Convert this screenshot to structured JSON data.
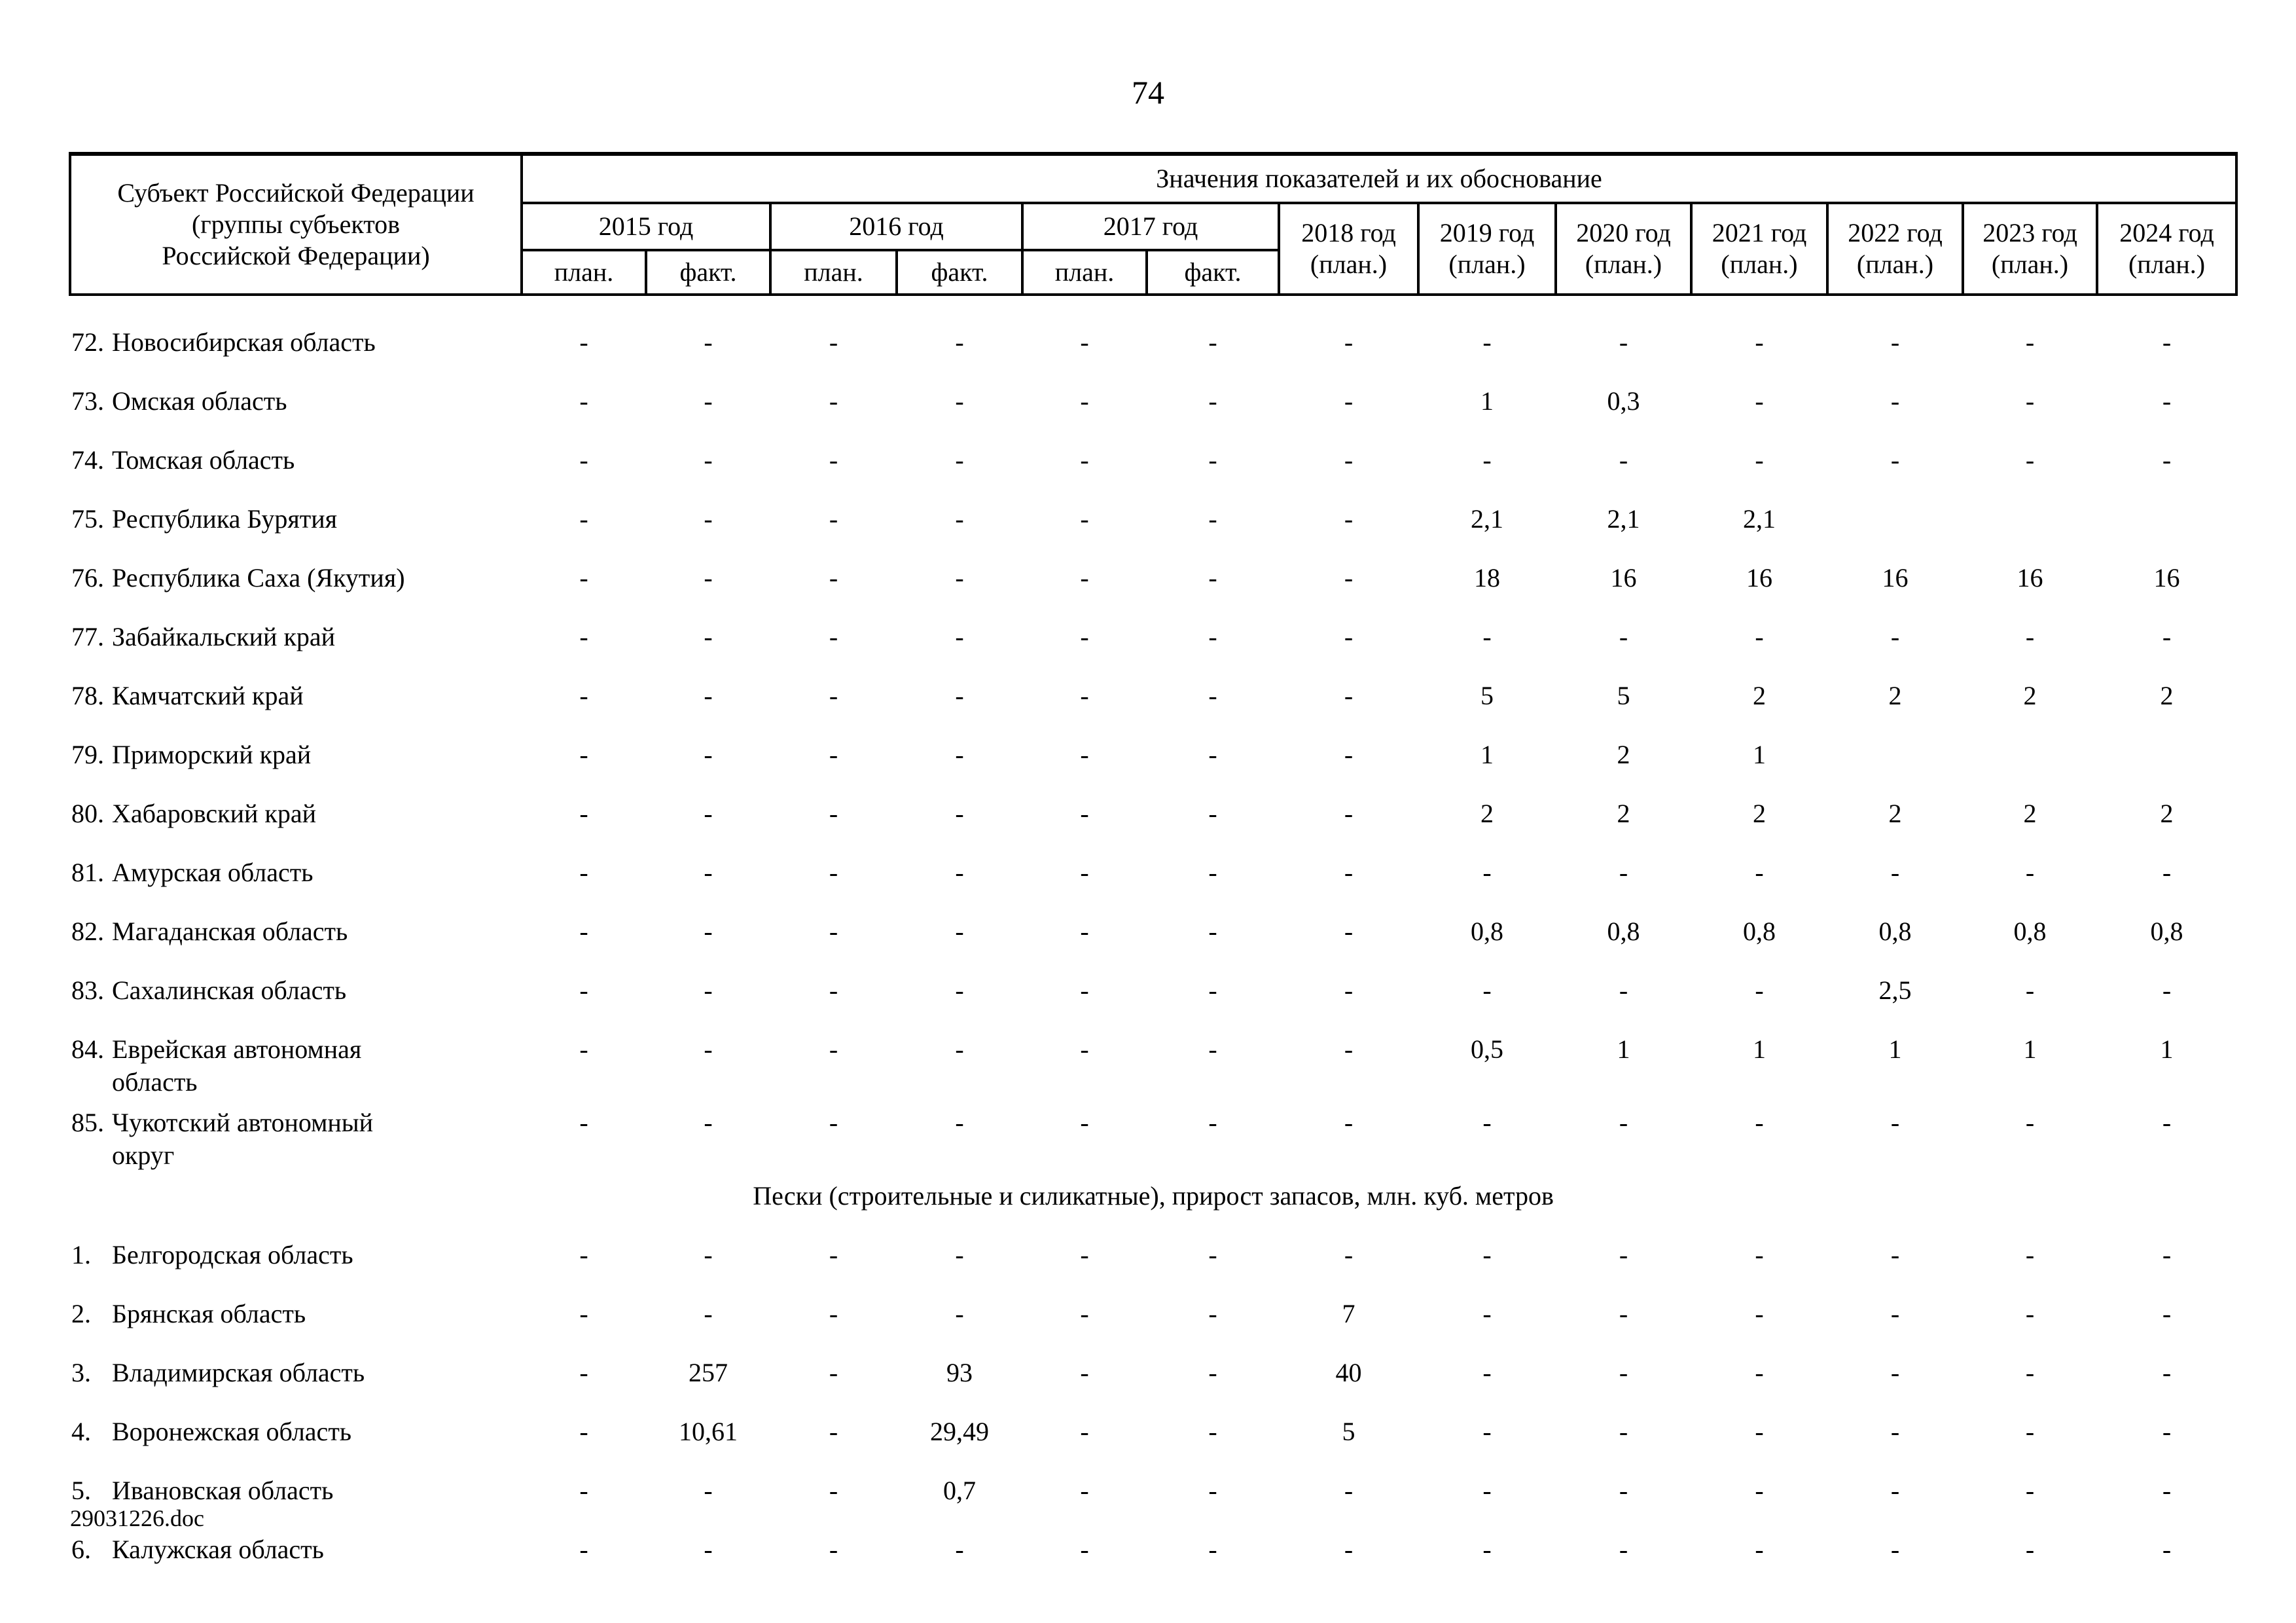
{
  "page": {
    "number": "74",
    "footer": "29031226.doc"
  },
  "table": {
    "subject_header": "Субъект Российской Федерации\n(группы субъектов\nРоссийской Федерации)",
    "values_header": "Значения показателей и их обоснование",
    "year_groups": [
      {
        "label": "2015 год"
      },
      {
        "label": "2016 год"
      },
      {
        "label": "2017 год"
      }
    ],
    "subcols": [
      "план.",
      "факт.",
      "план.",
      "факт.",
      "план.",
      "факт."
    ],
    "single_years": [
      "2018 год\n(план.)",
      "2019 год\n(план.)",
      "2020 год\n(план.)",
      "2021 год\n(план.)",
      "2022 год\n(план.)",
      "2023 год\n(план.)",
      "2024 год\n(план.)"
    ],
    "rows": [
      {
        "type": "row",
        "num": "72.",
        "name": "Новосибирская область",
        "values": [
          "-",
          "-",
          "-",
          "-",
          "-",
          "-",
          "-",
          "-",
          "-",
          "-",
          "-",
          "-",
          "-"
        ]
      },
      {
        "type": "row",
        "num": "73.",
        "name": "Омская область",
        "values": [
          "-",
          "-",
          "-",
          "-",
          "-",
          "-",
          "-",
          "1",
          "0,3",
          "-",
          "-",
          "-",
          "-"
        ]
      },
      {
        "type": "row",
        "num": "74.",
        "name": "Томская область",
        "values": [
          "-",
          "-",
          "-",
          "-",
          "-",
          "-",
          "-",
          "-",
          "-",
          "-",
          "-",
          "-",
          "-"
        ]
      },
      {
        "type": "row",
        "num": "75.",
        "name": "Республика Бурятия",
        "values": [
          "-",
          "-",
          "-",
          "-",
          "-",
          "-",
          "-",
          "2,1",
          "2,1",
          "2,1",
          "",
          "",
          ""
        ]
      },
      {
        "type": "row",
        "num": "76.",
        "name": "Республика Саха (Якутия)",
        "values": [
          "-",
          "-",
          "-",
          "-",
          "-",
          "-",
          "-",
          "18",
          "16",
          "16",
          "16",
          "16",
          "16"
        ]
      },
      {
        "type": "row",
        "num": "77.",
        "name": "Забайкальский край",
        "values": [
          "-",
          "-",
          "-",
          "-",
          "-",
          "-",
          "-",
          "-",
          "-",
          "-",
          "-",
          "-",
          "-"
        ]
      },
      {
        "type": "row",
        "num": "78.",
        "name": "Камчатский край",
        "values": [
          "-",
          "-",
          "-",
          "-",
          "-",
          "-",
          "-",
          "5",
          "5",
          "2",
          "2",
          "2",
          "2"
        ]
      },
      {
        "type": "row",
        "num": "79.",
        "name": "Приморский край",
        "values": [
          "-",
          "-",
          "-",
          "-",
          "-",
          "-",
          "-",
          "1",
          "2",
          "1",
          "",
          "",
          ""
        ]
      },
      {
        "type": "row",
        "num": "80.",
        "name": "Хабаровский край",
        "values": [
          "-",
          "-",
          "-",
          "-",
          "-",
          "-",
          "-",
          "2",
          "2",
          "2",
          "2",
          "2",
          "2"
        ]
      },
      {
        "type": "row",
        "num": "81.",
        "name": "Амурская область",
        "values": [
          "-",
          "-",
          "-",
          "-",
          "-",
          "-",
          "-",
          "-",
          "-",
          "-",
          "-",
          "-",
          "-"
        ]
      },
      {
        "type": "row",
        "num": "82.",
        "name": "Магаданская область",
        "values": [
          "-",
          "-",
          "-",
          "-",
          "-",
          "-",
          "-",
          "0,8",
          "0,8",
          "0,8",
          "0,8",
          "0,8",
          "0,8"
        ]
      },
      {
        "type": "row",
        "num": "83.",
        "name": "Сахалинская область",
        "values": [
          "-",
          "-",
          "-",
          "-",
          "-",
          "-",
          "-",
          "-",
          "-",
          "-",
          "2,5",
          "-",
          "-"
        ]
      },
      {
        "type": "row",
        "num": "84.",
        "name": "Еврейская автономная\nобласть",
        "values": [
          "-",
          "-",
          "-",
          "-",
          "-",
          "-",
          "-",
          "0,5",
          "1",
          "1",
          "1",
          "1",
          "1"
        ]
      },
      {
        "type": "row",
        "num": "85.",
        "name": "Чукотский автономный\nокруг",
        "values": [
          "-",
          "-",
          "-",
          "-",
          "-",
          "-",
          "-",
          "-",
          "-",
          "-",
          "-",
          "-",
          "-"
        ]
      },
      {
        "type": "section",
        "title": "Пески (строительные и силикатные), прирост запасов, млн. куб. метров"
      },
      {
        "type": "row",
        "num": "1.",
        "name": "Белгородская область",
        "values": [
          "-",
          "-",
          "-",
          "-",
          "-",
          "-",
          "-",
          "-",
          "-",
          "-",
          "-",
          "-",
          "-"
        ]
      },
      {
        "type": "row",
        "num": "2.",
        "name": "Брянская область",
        "values": [
          "-",
          "-",
          "-",
          "-",
          "-",
          "-",
          "7",
          "-",
          "-",
          "-",
          "-",
          "-",
          "-"
        ]
      },
      {
        "type": "row",
        "num": "3.",
        "name": "Владимирская область",
        "values": [
          "-",
          "257",
          "-",
          "93",
          "-",
          "-",
          "40",
          "-",
          "-",
          "-",
          "-",
          "-",
          "-"
        ]
      },
      {
        "type": "row",
        "num": "4.",
        "name": "Воронежская область",
        "values": [
          "-",
          "10,61",
          "-",
          "29,49",
          "-",
          "-",
          "5",
          "-",
          "-",
          "-",
          "-",
          "-",
          "-"
        ]
      },
      {
        "type": "row",
        "num": "5.",
        "name": "Ивановская область",
        "values": [
          "-",
          "-",
          "-",
          "0,7",
          "-",
          "-",
          "-",
          "-",
          "-",
          "-",
          "-",
          "-",
          "-"
        ]
      },
      {
        "type": "row",
        "num": "6.",
        "name": "Калужская область",
        "values": [
          "-",
          "-",
          "-",
          "-",
          "-",
          "-",
          "-",
          "-",
          "-",
          "-",
          "-",
          "-",
          "-"
        ]
      }
    ]
  }
}
